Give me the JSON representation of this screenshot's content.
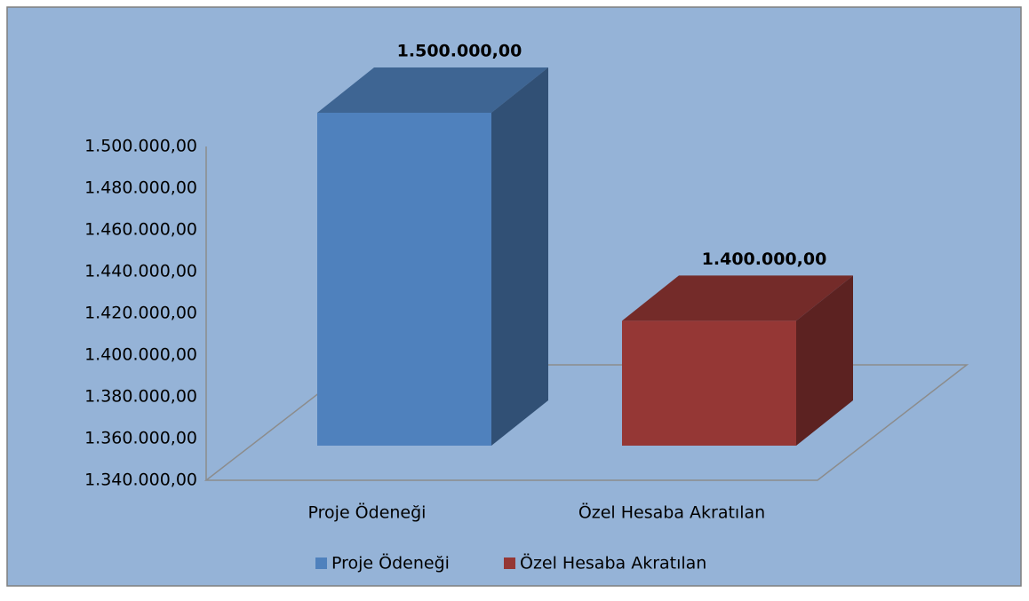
{
  "chart_data": {
    "type": "bar3d",
    "categories": [
      "Proje Ödeneği",
      "Özel Hesaba Akratılan"
    ],
    "values": [
      1500000,
      1400000
    ],
    "value_labels": [
      "1.500.000,00",
      "1.400.000,00"
    ],
    "colors": [
      "#4f81bd",
      "#953735"
    ],
    "ylim": [
      1340000,
      1500000
    ],
    "yticks": [
      {
        "value": 1340000,
        "label": "1.340.000,00"
      },
      {
        "value": 1360000,
        "label": "1.360.000,00"
      },
      {
        "value": 1380000,
        "label": "1.380.000,00"
      },
      {
        "value": 1400000,
        "label": "1.400.000,00"
      },
      {
        "value": 1420000,
        "label": "1.420.000,00"
      },
      {
        "value": 1440000,
        "label": "1.440.000,00"
      },
      {
        "value": 1460000,
        "label": "1.460.000,00"
      },
      {
        "value": 1480000,
        "label": "1.480.000,00"
      },
      {
        "value": 1500000,
        "label": "1.500.000,00"
      }
    ],
    "legend": "bottom"
  }
}
